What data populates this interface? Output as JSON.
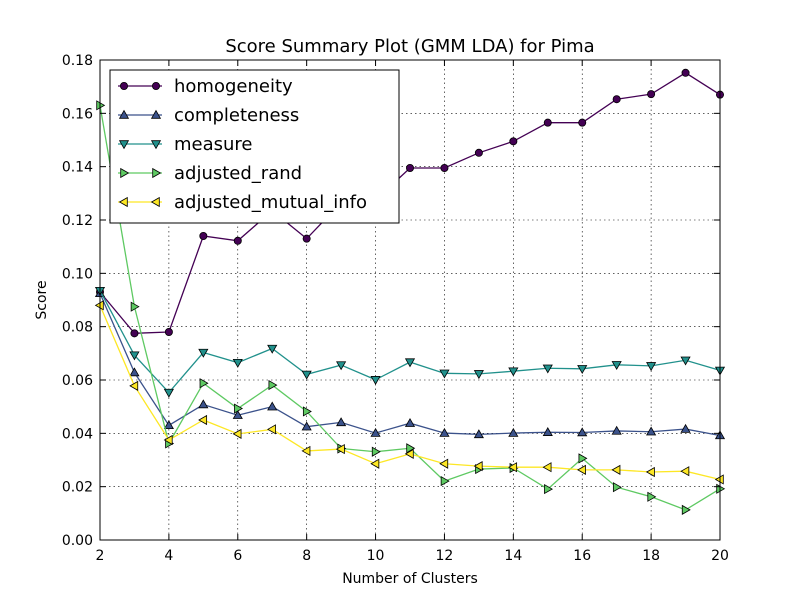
{
  "chart_data": {
    "type": "line",
    "title": "Score Summary Plot (GMM LDA) for Pima",
    "xlabel": "Number of Clusters",
    "ylabel": "Score",
    "xlim": [
      2,
      20
    ],
    "ylim": [
      0.0,
      0.18
    ],
    "xticks": [
      "2",
      "4",
      "6",
      "8",
      "10",
      "12",
      "14",
      "16",
      "18",
      "20"
    ],
    "yticks": [
      "0.00",
      "0.02",
      "0.04",
      "0.06",
      "0.08",
      "0.10",
      "0.12",
      "0.14",
      "0.16",
      "0.18"
    ],
    "grid": true,
    "legend_position": "top-left",
    "x": [
      2,
      3,
      4,
      5,
      6,
      7,
      8,
      9,
      10,
      11,
      12,
      13,
      14,
      15,
      16,
      17,
      18,
      19,
      20
    ],
    "series": [
      {
        "name": "homogeneity",
        "marker": "circle",
        "color": "#440154",
        "values": [
          0.093,
          0.0775,
          0.078,
          0.114,
          0.1122,
          0.1235,
          0.113,
          0.1265,
          0.1275,
          0.1395,
          0.1395,
          0.1452,
          0.1495,
          0.1565,
          0.1565,
          0.1653,
          0.1672,
          0.1752,
          0.167
        ]
      },
      {
        "name": "completeness",
        "marker": "triangle-up",
        "color": "#3b528b",
        "values": [
          0.0925,
          0.0628,
          0.043,
          0.0508,
          0.0468,
          0.05,
          0.0425,
          0.0441,
          0.0401,
          0.0438,
          0.0401,
          0.0396,
          0.0401,
          0.0404,
          0.0403,
          0.0409,
          0.0406,
          0.0416,
          0.0392
        ]
      },
      {
        "name": "measure",
        "marker": "triangle-down",
        "color": "#21918c",
        "values": [
          0.0935,
          0.0693,
          0.0553,
          0.0703,
          0.0665,
          0.0718,
          0.0621,
          0.0656,
          0.0601,
          0.0667,
          0.0625,
          0.0623,
          0.0633,
          0.0644,
          0.0642,
          0.0657,
          0.0653,
          0.0674,
          0.0636
        ]
      },
      {
        "name": "adjusted_rand",
        "marker": "triangle-right",
        "color": "#5ec962",
        "values": [
          0.163,
          0.0875,
          0.0362,
          0.0588,
          0.0493,
          0.0581,
          0.0482,
          0.0343,
          0.0331,
          0.0344,
          0.0221,
          0.0266,
          0.027,
          0.0191,
          0.0306,
          0.0198,
          0.0162,
          0.0113,
          0.0192
        ]
      },
      {
        "name": "adjusted_mutual_info",
        "marker": "triangle-left",
        "color": "#fde725",
        "values": [
          0.088,
          0.0578,
          0.0375,
          0.045,
          0.0398,
          0.0415,
          0.0334,
          0.0341,
          0.0286,
          0.0323,
          0.0286,
          0.0277,
          0.0273,
          0.0273,
          0.0263,
          0.0263,
          0.0255,
          0.0258,
          0.0227
        ]
      }
    ]
  }
}
